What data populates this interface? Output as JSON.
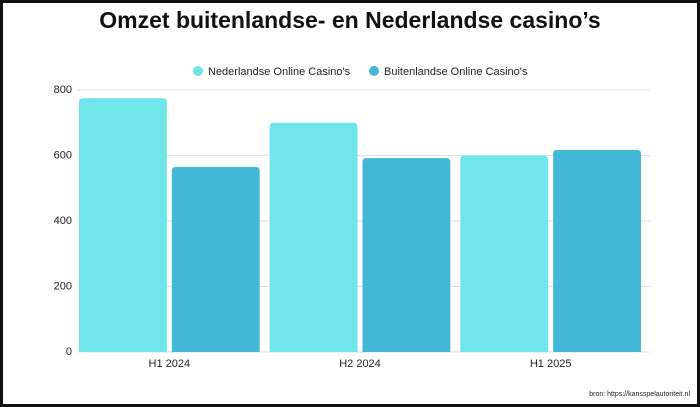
{
  "chart_data": {
    "type": "bar",
    "title": "Omzet buitenlandse- en Nederlandse casino’s",
    "categories": [
      "H1 2024",
      "H2 2024",
      "H1 2025"
    ],
    "series": [
      {
        "name": "Nederlandse Online Casino's",
        "color": "#6ee6e9",
        "values": [
          775,
          700,
          600
        ]
      },
      {
        "name": "Buitenlandse Online Casino's",
        "color": "#43b8d6",
        "values": [
          565,
          592,
          617
        ]
      }
    ],
    "ylim": [
      0,
      800
    ],
    "yticks": [
      0,
      200,
      400,
      600,
      800
    ],
    "grid": true,
    "source": "bron: https://kansspelautoriteit.nl"
  }
}
